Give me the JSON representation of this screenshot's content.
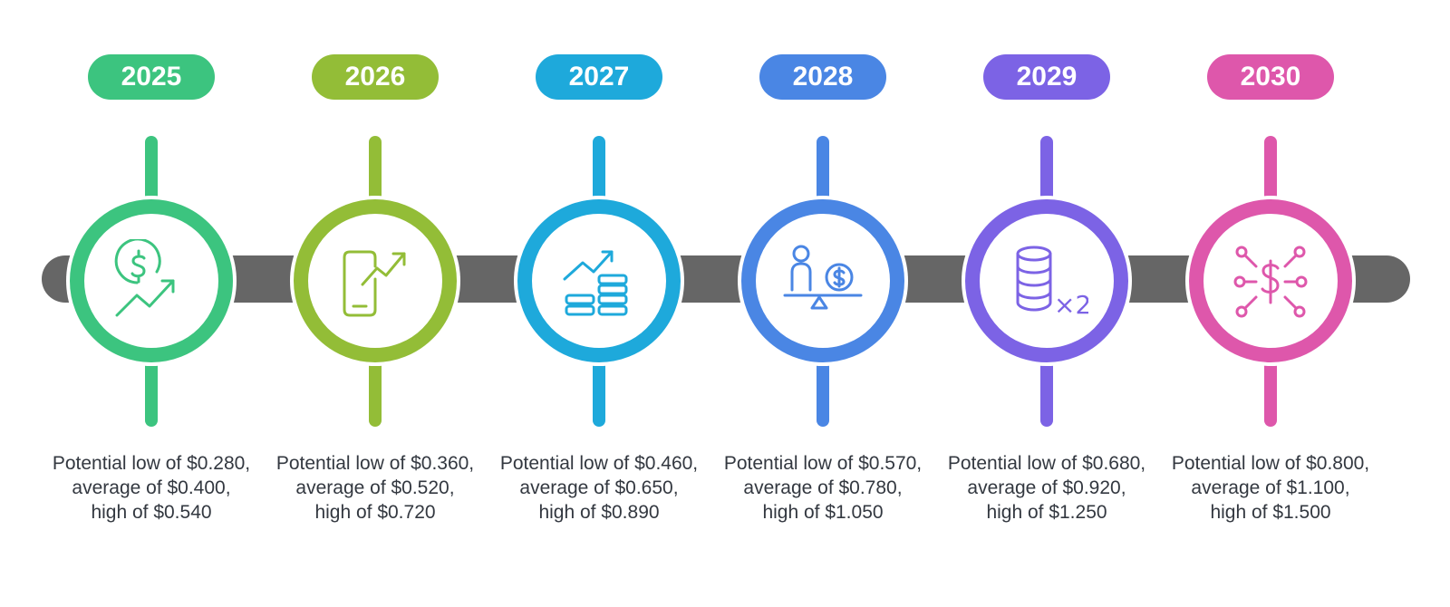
{
  "stages": [
    {
      "year": "2025",
      "color": "#3cc47f",
      "icon": "dollar-growth-icon",
      "description": "Potential low of $0.280, average of $0.400, high of $0.540"
    },
    {
      "year": "2026",
      "color": "#93bd37",
      "icon": "mobile-growth-icon",
      "description": "Potential low of $0.360, average of $0.520, high of $0.720"
    },
    {
      "year": "2027",
      "color": "#1ea9db",
      "icon": "coins-growth-icon",
      "description": "Potential low of $0.460, average of $0.650, high of $0.890"
    },
    {
      "year": "2028",
      "color": "#4a86e4",
      "icon": "investor-balance-icon",
      "description": "Potential low of $0.570, average of $0.780, high of $1.050"
    },
    {
      "year": "2029",
      "color": "#7c63e5",
      "icon": "coin-stack-double-icon",
      "description": "Potential low of $0.680, average of $0.920, high of $1.250"
    },
    {
      "year": "2030",
      "color": "#de57ab",
      "icon": "dollar-network-icon",
      "description": "Potential low of $0.800, average of $1.100, high of $1.500"
    }
  ],
  "icon_text": {
    "multiplier": "×2"
  }
}
